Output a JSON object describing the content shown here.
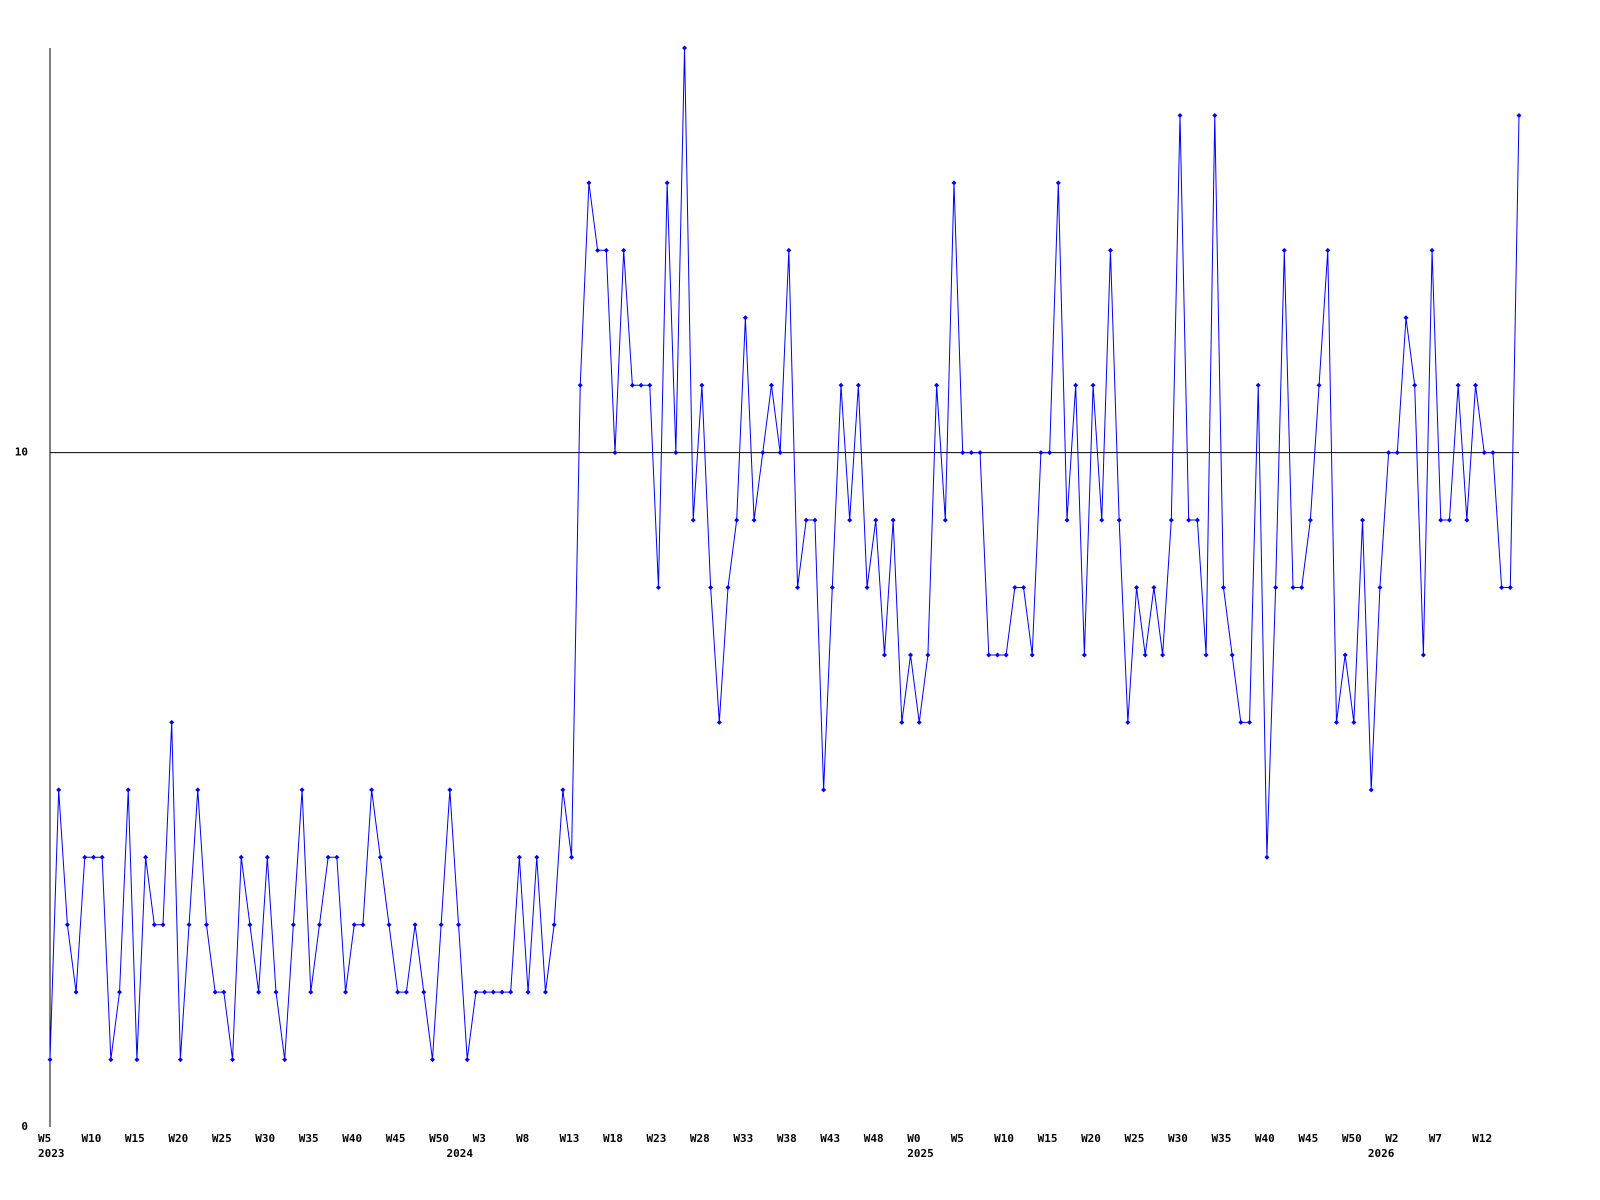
{
  "chart_data": {
    "type": "line",
    "x": [
      0,
      1,
      2,
      3,
      4,
      5,
      6,
      7,
      8,
      9,
      10,
      11,
      12,
      13,
      14,
      15,
      16,
      17,
      18,
      19,
      20,
      21,
      22,
      23,
      24,
      25,
      26,
      27,
      28,
      29,
      30,
      31,
      32,
      33,
      34,
      35,
      36,
      37,
      38,
      39,
      40,
      41,
      42,
      43,
      44,
      45,
      46,
      47,
      48,
      49,
      50,
      51,
      52,
      53,
      54,
      55,
      56,
      57,
      58,
      59,
      60,
      61,
      62,
      63,
      64,
      65,
      66,
      67,
      68,
      69,
      70,
      71,
      72,
      73,
      74,
      75,
      76,
      77,
      78,
      79,
      80,
      81,
      82,
      83,
      84,
      85,
      86,
      87,
      88,
      89,
      90,
      91,
      92,
      93,
      94,
      95,
      96,
      97,
      98,
      99,
      100,
      101,
      102,
      103,
      104,
      105,
      106,
      107,
      108,
      109,
      110,
      111,
      112,
      113,
      114,
      115,
      116,
      117,
      118,
      119,
      120,
      121,
      122,
      123,
      124,
      125,
      126,
      127,
      128,
      129,
      130,
      131,
      132,
      133,
      134,
      135,
      136,
      137,
      138,
      139,
      140,
      141,
      142,
      143,
      144,
      145,
      146,
      147,
      148,
      149,
      150,
      151,
      152,
      153,
      154,
      155,
      156,
      157,
      158,
      159,
      160,
      161,
      162,
      163,
      164,
      165,
      166,
      167,
      168,
      169
    ],
    "series": [
      {
        "color": "#0000ff",
        "values": [
          1,
          5,
          3,
          2,
          4,
          4,
          4,
          1,
          2,
          5,
          1,
          4,
          3,
          3,
          6,
          1,
          3,
          5,
          3,
          2,
          2,
          1,
          4,
          3,
          2,
          4,
          2,
          1,
          3,
          5,
          2,
          3,
          4,
          4,
          2,
          3,
          3,
          5,
          4,
          3,
          2,
          2,
          3,
          2,
          1,
          3,
          5,
          3,
          1,
          2,
          2,
          2,
          2,
          2,
          4,
          2,
          4,
          2,
          3,
          5,
          4,
          11,
          14,
          13,
          13,
          10,
          13,
          11,
          11,
          11,
          8,
          14,
          10,
          16,
          9,
          11,
          8,
          6,
          8,
          9,
          12,
          9,
          10,
          11,
          10,
          13,
          8,
          9,
          9,
          5,
          8,
          11,
          9,
          11,
          8,
          9,
          7,
          9,
          6,
          7,
          6,
          7,
          11,
          9,
          14,
          10,
          10,
          10,
          7,
          7,
          7,
          8,
          8,
          7,
          10,
          10,
          14,
          9,
          11,
          7,
          11,
          9,
          13,
          9,
          6,
          8,
          7,
          8,
          7,
          9,
          15,
          9,
          9,
          7,
          15,
          8,
          7,
          6,
          6,
          11,
          4,
          8,
          13,
          8,
          8,
          9,
          11,
          13,
          6,
          7,
          6,
          9,
          5,
          8,
          10,
          10,
          12,
          11,
          7,
          13,
          9,
          9,
          11,
          9,
          11,
          10,
          10,
          8,
          8,
          15
        ]
      }
    ],
    "xlim": [
      0,
      169
    ],
    "xticks": [
      {
        "value": 0,
        "label": "W5"
      },
      {
        "value": 5,
        "label": "W10"
      },
      {
        "value": 10,
        "label": "W15"
      },
      {
        "value": 15,
        "label": "W20"
      },
      {
        "value": 20,
        "label": "W25"
      },
      {
        "value": 25,
        "label": "W30"
      },
      {
        "value": 30,
        "label": "W35"
      },
      {
        "value": 35,
        "label": "W40"
      },
      {
        "value": 40,
        "label": "W45"
      },
      {
        "value": 45,
        "label": "W50"
      },
      {
        "value": 50,
        "label": "W3"
      },
      {
        "value": 55,
        "label": "W8"
      },
      {
        "value": 60,
        "label": "W13"
      },
      {
        "value": 65,
        "label": "W18"
      },
      {
        "value": 70,
        "label": "W23"
      },
      {
        "value": 75,
        "label": "W28"
      },
      {
        "value": 80,
        "label": "W33"
      },
      {
        "value": 85,
        "label": "W38"
      },
      {
        "value": 90,
        "label": "W43"
      },
      {
        "value": 95,
        "label": "W48"
      },
      {
        "value": 100,
        "label": "W0"
      },
      {
        "value": 105,
        "label": "W5"
      },
      {
        "value": 110,
        "label": "W10"
      },
      {
        "value": 115,
        "label": "W15"
      },
      {
        "value": 120,
        "label": "W20"
      },
      {
        "value": 125,
        "label": "W25"
      },
      {
        "value": 130,
        "label": "W30"
      },
      {
        "value": 135,
        "label": "W35"
      },
      {
        "value": 140,
        "label": "W40"
      },
      {
        "value": 145,
        "label": "W45"
      },
      {
        "value": 150,
        "label": "W50"
      },
      {
        "value": 155,
        "label": "W2"
      },
      {
        "value": 160,
        "label": "W7"
      },
      {
        "value": 165,
        "label": "W12"
      }
    ],
    "year_labels": [
      {
        "value": 0,
        "label": "2023"
      },
      {
        "value": 47,
        "label": "2024"
      },
      {
        "value": 100,
        "label": "2025"
      },
      {
        "value": 153,
        "label": "2026"
      }
    ],
    "ylim": [
      0,
      16
    ],
    "yticks": [
      0,
      10
    ],
    "grid": true
  }
}
